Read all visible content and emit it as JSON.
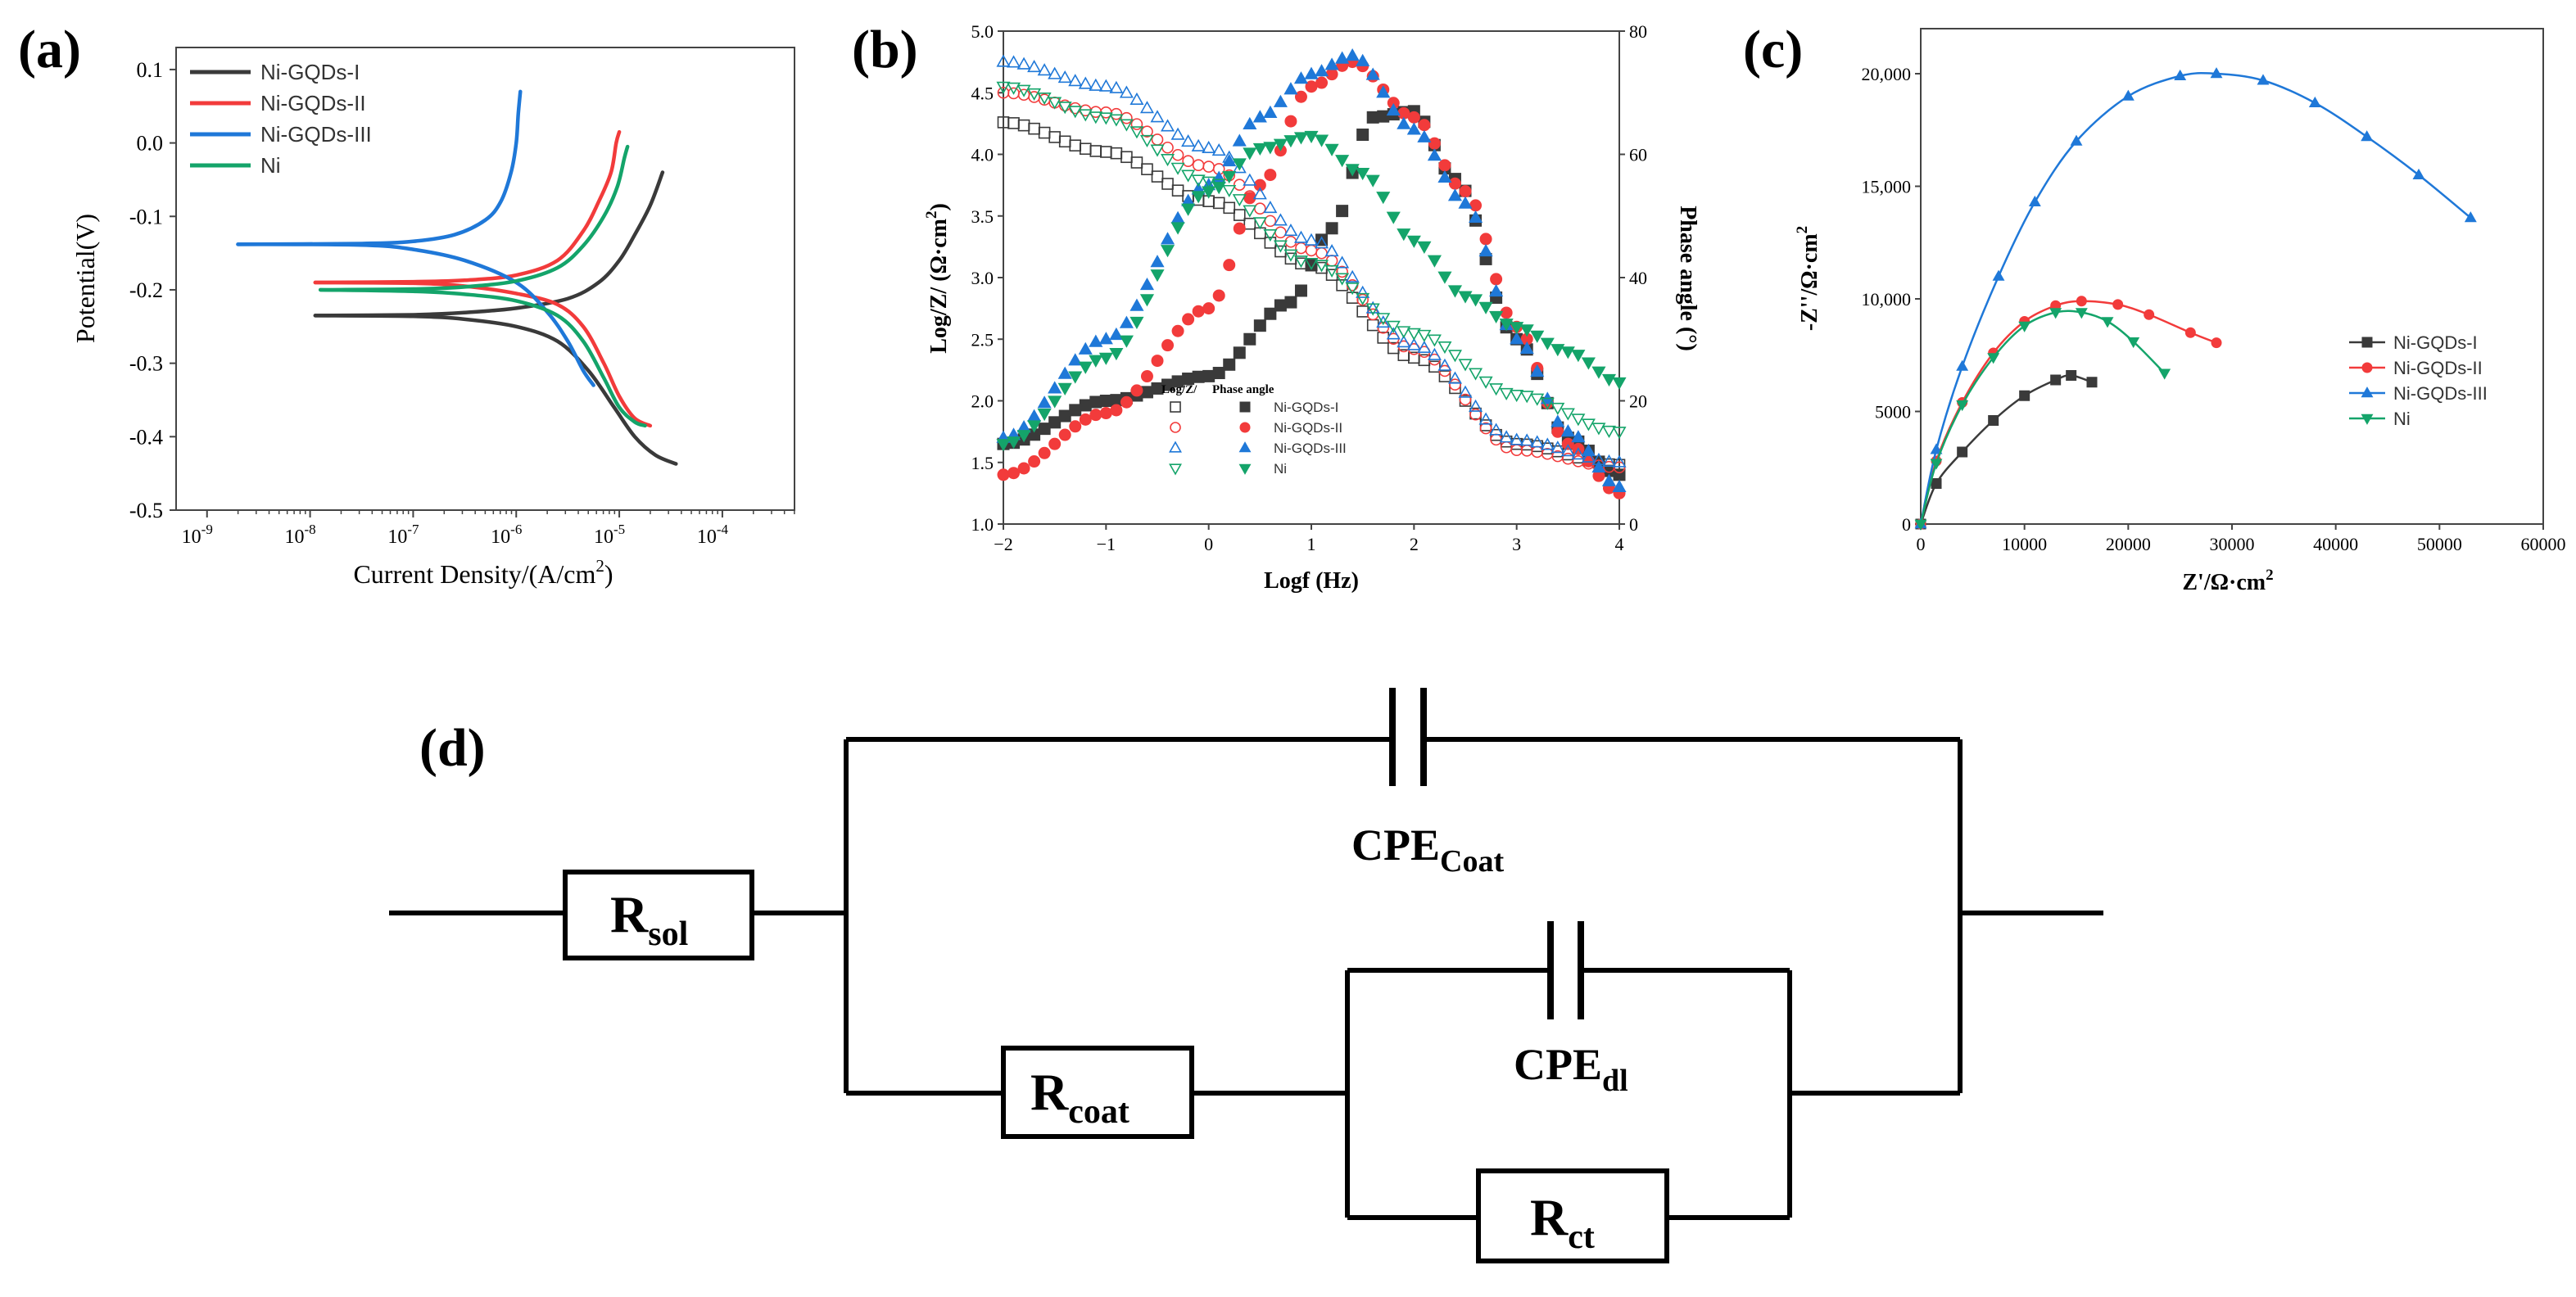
{
  "colors": {
    "ni_gqds_i": "#3a3a3a",
    "ni_gqds_ii": "#f23b3b",
    "ni_gqds_iii": "#1f78d8",
    "ni": "#14a46a"
  },
  "chart_data": [
    {
      "panel": "(a)",
      "type": "line",
      "xlabel": "Current Density/(A/cm",
      "xlabel_sup": "2",
      "xlabel_end": ")",
      "ylabel": "Potential(V)",
      "xscale": "log",
      "xlim_exp": [
        -9.3,
        -3.3
      ],
      "ylim": [
        -0.5,
        0.13
      ],
      "x_ticks": [
        {
          "exp": -9,
          "base": "10",
          "sup": "-9"
        },
        {
          "exp": -8,
          "base": "10",
          "sup": "-8"
        },
        {
          "exp": -7,
          "base": "10",
          "sup": "-7"
        },
        {
          "exp": -6,
          "base": "10",
          "sup": "-6"
        },
        {
          "exp": -5,
          "base": "10",
          "sup": "-5"
        },
        {
          "exp": -4,
          "base": "10",
          "sup": "-4"
        }
      ],
      "y_ticks": [
        {
          "v": 0.1,
          "label": "0.1"
        },
        {
          "v": 0.0,
          "label": "0.0"
        },
        {
          "v": -0.1,
          "label": "-0.1"
        },
        {
          "v": -0.2,
          "label": "-0.2"
        },
        {
          "v": -0.3,
          "label": "-0.3"
        },
        {
          "v": -0.4,
          "label": "-0.4"
        },
        {
          "v": -0.5,
          "label": "-0.5"
        }
      ],
      "legend_position": "top-left",
      "series": [
        {
          "name": "Ni-GQDs-I",
          "color_key": "ni_gqds_i",
          "anodic": [
            [
              -7.95,
              -0.235
            ],
            [
              -7.0,
              -0.234
            ],
            [
              -6.5,
              -0.231
            ],
            [
              -6.0,
              -0.225
            ],
            [
              -5.5,
              -0.212
            ],
            [
              -5.2,
              -0.19
            ],
            [
              -5.0,
              -0.16
            ],
            [
              -4.85,
              -0.125
            ],
            [
              -4.7,
              -0.085
            ],
            [
              -4.58,
              -0.04
            ]
          ],
          "cathodic": [
            [
              -7.95,
              -0.235
            ],
            [
              -7.0,
              -0.236
            ],
            [
              -6.5,
              -0.24
            ],
            [
              -6.0,
              -0.25
            ],
            [
              -5.6,
              -0.27
            ],
            [
              -5.3,
              -0.31
            ],
            [
              -5.05,
              -0.36
            ],
            [
              -4.85,
              -0.4
            ],
            [
              -4.65,
              -0.425
            ],
            [
              -4.45,
              -0.437
            ]
          ]
        },
        {
          "name": "Ni-GQDs-II",
          "color_key": "ni_gqds_ii",
          "anodic": [
            [
              -7.95,
              -0.19
            ],
            [
              -7.0,
              -0.189
            ],
            [
              -6.5,
              -0.187
            ],
            [
              -6.0,
              -0.18
            ],
            [
              -5.6,
              -0.16
            ],
            [
              -5.35,
              -0.12
            ],
            [
              -5.2,
              -0.08
            ],
            [
              -5.08,
              -0.04
            ],
            [
              -5.03,
              0.0
            ],
            [
              -5.0,
              0.015
            ]
          ],
          "cathodic": [
            [
              -7.95,
              -0.19
            ],
            [
              -7.0,
              -0.191
            ],
            [
              -6.5,
              -0.195
            ],
            [
              -6.0,
              -0.205
            ],
            [
              -5.6,
              -0.22
            ],
            [
              -5.35,
              -0.25
            ],
            [
              -5.15,
              -0.3
            ],
            [
              -5.0,
              -0.345
            ],
            [
              -4.85,
              -0.375
            ],
            [
              -4.7,
              -0.385
            ]
          ]
        },
        {
          "name": "Ni-GQDs-III",
          "color_key": "ni_gqds_iii",
          "anodic": [
            [
              -8.7,
              -0.138
            ],
            [
              -7.5,
              -0.137
            ],
            [
              -7.0,
              -0.134
            ],
            [
              -6.6,
              -0.125
            ],
            [
              -6.3,
              -0.105
            ],
            [
              -6.15,
              -0.08
            ],
            [
              -6.05,
              -0.04
            ],
            [
              -6.0,
              0.0
            ],
            [
              -5.98,
              0.04
            ],
            [
              -5.96,
              0.07
            ]
          ],
          "cathodic": [
            [
              -8.7,
              -0.138
            ],
            [
              -7.5,
              -0.139
            ],
            [
              -7.0,
              -0.145
            ],
            [
              -6.5,
              -0.16
            ],
            [
              -6.0,
              -0.19
            ],
            [
              -5.7,
              -0.23
            ],
            [
              -5.5,
              -0.27
            ],
            [
              -5.35,
              -0.31
            ],
            [
              -5.25,
              -0.33
            ]
          ]
        },
        {
          "name": "Ni",
          "color_key": "ni",
          "anodic": [
            [
              -7.9,
              -0.2
            ],
            [
              -7.0,
              -0.199
            ],
            [
              -6.5,
              -0.196
            ],
            [
              -6.0,
              -0.188
            ],
            [
              -5.6,
              -0.17
            ],
            [
              -5.35,
              -0.14
            ],
            [
              -5.15,
              -0.1
            ],
            [
              -5.02,
              -0.06
            ],
            [
              -4.95,
              -0.02
            ],
            [
              -4.92,
              -0.005
            ]
          ],
          "cathodic": [
            [
              -7.9,
              -0.2
            ],
            [
              -7.0,
              -0.202
            ],
            [
              -6.5,
              -0.206
            ],
            [
              -6.0,
              -0.215
            ],
            [
              -5.6,
              -0.235
            ],
            [
              -5.35,
              -0.27
            ],
            [
              -5.15,
              -0.32
            ],
            [
              -5.0,
              -0.36
            ],
            [
              -4.85,
              -0.38
            ],
            [
              -4.75,
              -0.385
            ]
          ]
        }
      ]
    },
    {
      "panel": "(b)",
      "type": "scatter",
      "xlabel": "Logf (Hz)",
      "ylabel_left": "Log/Z/ (Ω·cm",
      "ylabel_left_sup": "2",
      "ylabel_left_end": ")",
      "ylabel_right": "Phase angle (°)",
      "xlim": [
        -2,
        4
      ],
      "ylim_left": [
        1.0,
        5.0
      ],
      "ylim_right": [
        0,
        80
      ],
      "x_ticks": [
        "−2",
        "−1",
        "0",
        "1",
        "2",
        "3",
        "4"
      ],
      "y_left_ticks": [
        "1.0",
        "1.5",
        "2.0",
        "2.5",
        "3.0",
        "3.5",
        "4.0",
        "4.5",
        "5.0"
      ],
      "y_right_ticks": [
        "0",
        "20",
        "40",
        "60",
        "80"
      ],
      "legend_header_1": "Log/Z/",
      "legend_header_2": "Phase angle",
      "legend_position": "lower-left",
      "series": [
        {
          "name": "Ni-GQDs-I",
          "color_key": "ni_gqds_i",
          "marker": "square",
          "logZ": [
            [
              -2,
              4.26
            ],
            [
              -1,
              4.02
            ],
            [
              0,
              3.62
            ],
            [
              1,
              3.1
            ],
            [
              2,
              2.35
            ],
            [
              3,
              1.65
            ],
            [
              4,
              1.48
            ]
          ],
          "phase": [
            [
              -2,
              13
            ],
            [
              -1,
              20
            ],
            [
              0,
              24
            ],
            [
              0.8,
              36
            ],
            [
              1.2,
              48
            ],
            [
              1.6,
              66
            ],
            [
              2,
              67
            ],
            [
              2.4,
              56
            ],
            [
              3,
              30
            ],
            [
              3.5,
              14
            ],
            [
              4,
              8
            ]
          ]
        },
        {
          "name": "Ni-GQDs-II",
          "color_key": "ni_gqds_ii",
          "marker": "circle",
          "logZ": [
            [
              -2,
              4.5
            ],
            [
              -1,
              4.34
            ],
            [
              0,
              3.9
            ],
            [
              1,
              3.22
            ],
            [
              2,
              2.42
            ],
            [
              3,
              1.6
            ],
            [
              4,
              1.46
            ]
          ],
          "phase": [
            [
              -2,
              8
            ],
            [
              -1,
              18
            ],
            [
              0,
              35
            ],
            [
              0.5,
              55
            ],
            [
              1,
              71
            ],
            [
              1.4,
              75
            ],
            [
              2,
              66
            ],
            [
              2.5,
              54
            ],
            [
              3,
              32
            ],
            [
              3.5,
              13
            ],
            [
              4,
              5
            ]
          ]
        },
        {
          "name": "Ni-GQDs-III",
          "color_key": "ni_gqds_iii",
          "marker": "triangle-up",
          "logZ": [
            [
              -2,
              4.75
            ],
            [
              -1,
              4.55
            ],
            [
              0,
              4.05
            ],
            [
              1,
              3.3
            ],
            [
              2,
              2.45
            ],
            [
              3,
              1.68
            ],
            [
              4,
              1.5
            ]
          ],
          "phase": [
            [
              -2,
              14
            ],
            [
              -1,
              30
            ],
            [
              0,
              55
            ],
            [
              0.5,
              66
            ],
            [
              1,
              73
            ],
            [
              1.4,
              76
            ],
            [
              2,
              64
            ],
            [
              2.5,
              52
            ],
            [
              3,
              30
            ],
            [
              3.5,
              15
            ],
            [
              4,
              6
            ]
          ]
        },
        {
          "name": "Ni",
          "color_key": "ni",
          "marker": "triangle-down",
          "logZ": [
            [
              -2,
              4.55
            ],
            [
              -1,
              4.3
            ],
            [
              0,
              3.78
            ],
            [
              1,
              3.12
            ],
            [
              2,
              2.55
            ],
            [
              3,
              2.05
            ],
            [
              4,
              1.75
            ]
          ],
          "phase": [
            [
              -2,
              13
            ],
            [
              -1,
              27
            ],
            [
              0,
              54
            ],
            [
              0.5,
              61
            ],
            [
              1,
              63
            ],
            [
              1.5,
              57
            ],
            [
              2,
              46
            ],
            [
              2.5,
              37
            ],
            [
              3,
              32
            ],
            [
              3.5,
              28
            ],
            [
              4,
              23
            ]
          ]
        }
      ]
    },
    {
      "panel": "(c)",
      "type": "line",
      "xlabel": "Z'/Ω·cm",
      "xlabel_sup": "2",
      "ylabel": "-Z''/Ω·cm",
      "ylabel_sup": "2",
      "xlim": [
        0,
        60000
      ],
      "ylim": [
        0,
        22000
      ],
      "x_ticks": [
        "0",
        "10000",
        "20000",
        "30000",
        "40000",
        "50000",
        "60000"
      ],
      "y_ticks": [
        "0",
        "5000",
        "10,000",
        "15,000",
        "20,000"
      ],
      "legend_position": "right",
      "series": [
        {
          "name": "Ni-GQDs-I",
          "color_key": "ni_gqds_i",
          "marker": "square",
          "points": [
            [
              0,
              0
            ],
            [
              1500,
              1800
            ],
            [
              4000,
              3200
            ],
            [
              7000,
              4600
            ],
            [
              10000,
              5700
            ],
            [
              13000,
              6400
            ],
            [
              14500,
              6600
            ],
            [
              16500,
              6300
            ]
          ]
        },
        {
          "name": "Ni-GQDs-II",
          "color_key": "ni_gqds_ii",
          "marker": "circle",
          "points": [
            [
              0,
              0
            ],
            [
              1500,
              2800
            ],
            [
              4000,
              5400
            ],
            [
              7000,
              7600
            ],
            [
              10000,
              9000
            ],
            [
              13000,
              9700
            ],
            [
              15500,
              9900
            ],
            [
              19000,
              9750
            ],
            [
              22000,
              9300
            ],
            [
              26000,
              8500
            ],
            [
              28500,
              8050
            ]
          ]
        },
        {
          "name": "Ni-GQDs-III",
          "color_key": "ni_gqds_iii",
          "marker": "triangle-up",
          "points": [
            [
              0,
              0
            ],
            [
              1500,
              3300
            ],
            [
              4000,
              7000
            ],
            [
              7500,
              11000
            ],
            [
              11000,
              14300
            ],
            [
              15000,
              17000
            ],
            [
              20000,
              19000
            ],
            [
              25000,
              19900
            ],
            [
              28500,
              20000
            ],
            [
              33000,
              19700
            ],
            [
              38000,
              18700
            ],
            [
              43000,
              17200
            ],
            [
              48000,
              15500
            ],
            [
              53000,
              13600
            ]
          ]
        },
        {
          "name": "Ni",
          "color_key": "ni",
          "marker": "triangle-down",
          "points": [
            [
              0,
              0
            ],
            [
              1500,
              2700
            ],
            [
              4000,
              5300
            ],
            [
              7000,
              7400
            ],
            [
              10000,
              8800
            ],
            [
              13000,
              9400
            ],
            [
              15500,
              9400
            ],
            [
              18000,
              9000
            ],
            [
              20500,
              8100
            ],
            [
              23500,
              6700
            ]
          ]
        }
      ]
    }
  ],
  "panels": {
    "a_label": "(a)",
    "b_label": "(b)",
    "c_label": "(c)",
    "d_label": "(d)"
  },
  "circuit": {
    "r_sol": {
      "main": "R",
      "sub": "sol"
    },
    "cpe_coat": {
      "main": "CPE",
      "sub": "Coat"
    },
    "r_coat": {
      "main": "R",
      "sub": "coat"
    },
    "cpe_dl": {
      "main": "CPE",
      "sub": "dl"
    },
    "r_ct": {
      "main": "R",
      "sub": "ct"
    }
  }
}
